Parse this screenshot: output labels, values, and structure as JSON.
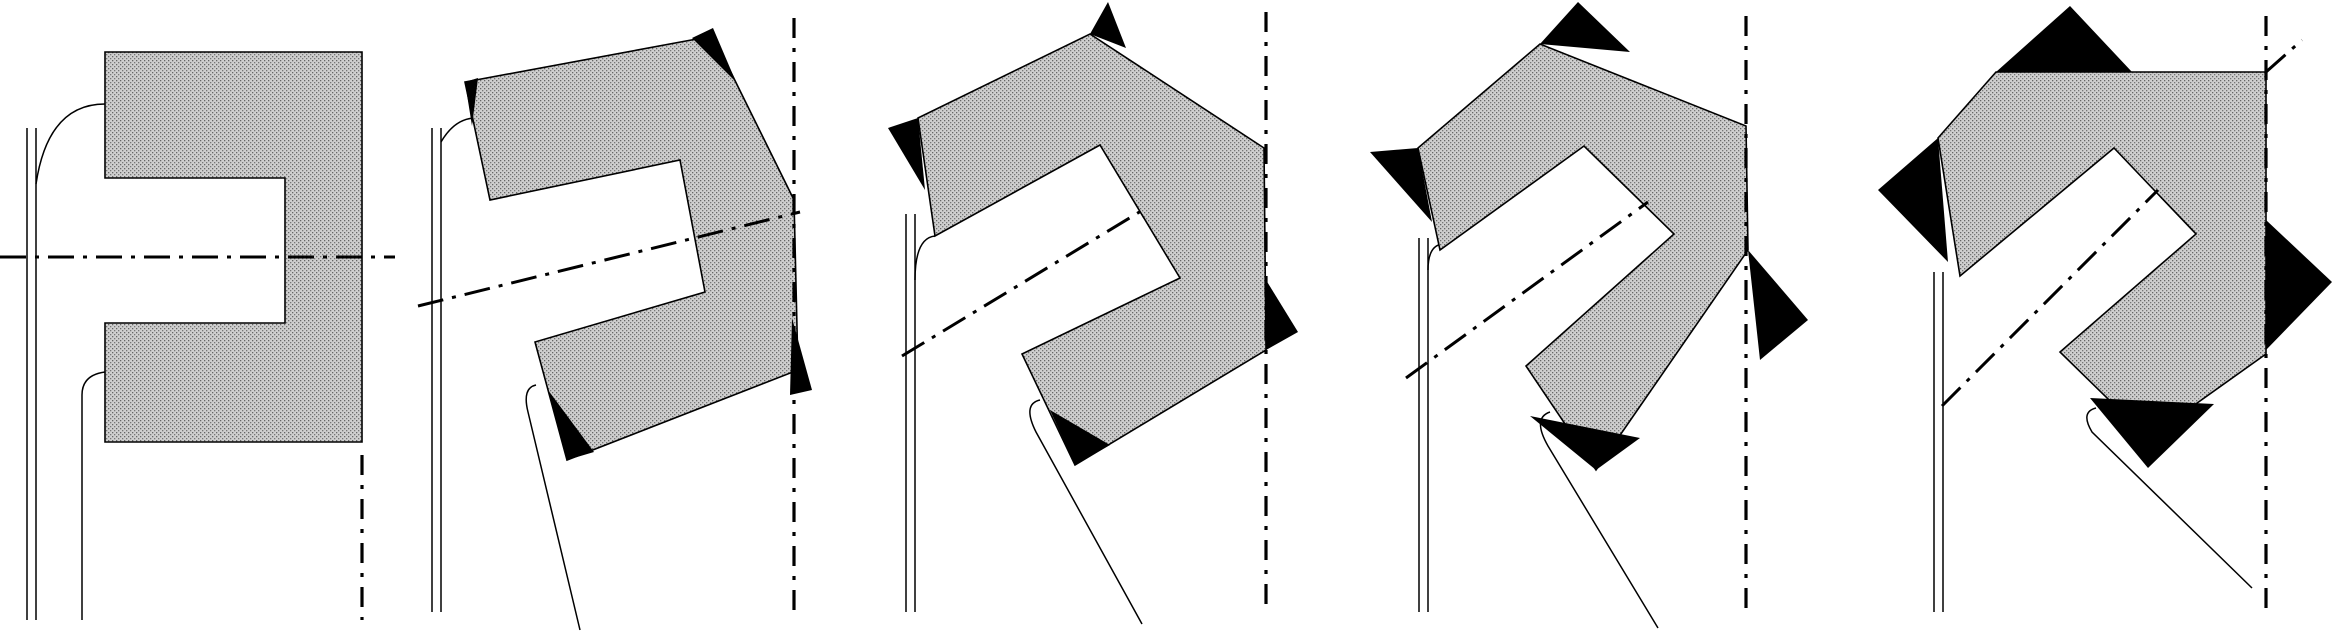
{
  "figure": {
    "panel_count": 5,
    "panels": [
      {
        "id": "stage-1",
        "rotation_deg": 0
      },
      {
        "id": "stage-2",
        "rotation_deg": -11
      },
      {
        "id": "stage-3",
        "rotation_deg": -22
      },
      {
        "id": "stage-4",
        "rotation_deg": -33
      },
      {
        "id": "stage-5",
        "rotation_deg": -45
      }
    ],
    "colors": {
      "background": "#ffffff",
      "line": "#000000",
      "hatch": "#c8c8c8",
      "wedge": "#000000"
    }
  }
}
